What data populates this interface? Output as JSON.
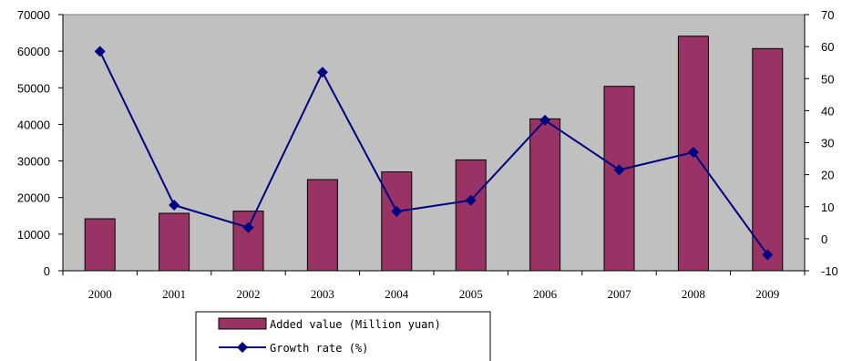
{
  "chart_data": {
    "type": "bar",
    "categories": [
      "2000",
      "2001",
      "2002",
      "2003",
      "2004",
      "2005",
      "2006",
      "2007",
      "2008",
      "2009"
    ],
    "series": [
      {
        "name": "Added value (Million yuan)",
        "type": "bar",
        "axis": "left",
        "values": [
          14200,
          15700,
          16300,
          24900,
          27000,
          30300,
          41500,
          50400,
          64100,
          60700
        ]
      },
      {
        "name": "Growth rate (%)",
        "type": "line",
        "axis": "right",
        "values": [
          58.5,
          10.5,
          3.5,
          52,
          8.5,
          12,
          37,
          21.5,
          27,
          -5
        ]
      }
    ],
    "y_left": {
      "min": 0,
      "max": 70000,
      "ticks": [
        0,
        10000,
        20000,
        30000,
        40000,
        50000,
        60000,
        70000
      ]
    },
    "y_right": {
      "min": -10,
      "max": 70,
      "ticks": [
        -10,
        0,
        10,
        20,
        30,
        40,
        50,
        60,
        70
      ]
    },
    "legend_position": "bottom",
    "grid": false,
    "colors": {
      "plot_background": "#c0c0c0",
      "bar_fill": "#993366",
      "line": "#000080",
      "marker": "#000080"
    }
  }
}
